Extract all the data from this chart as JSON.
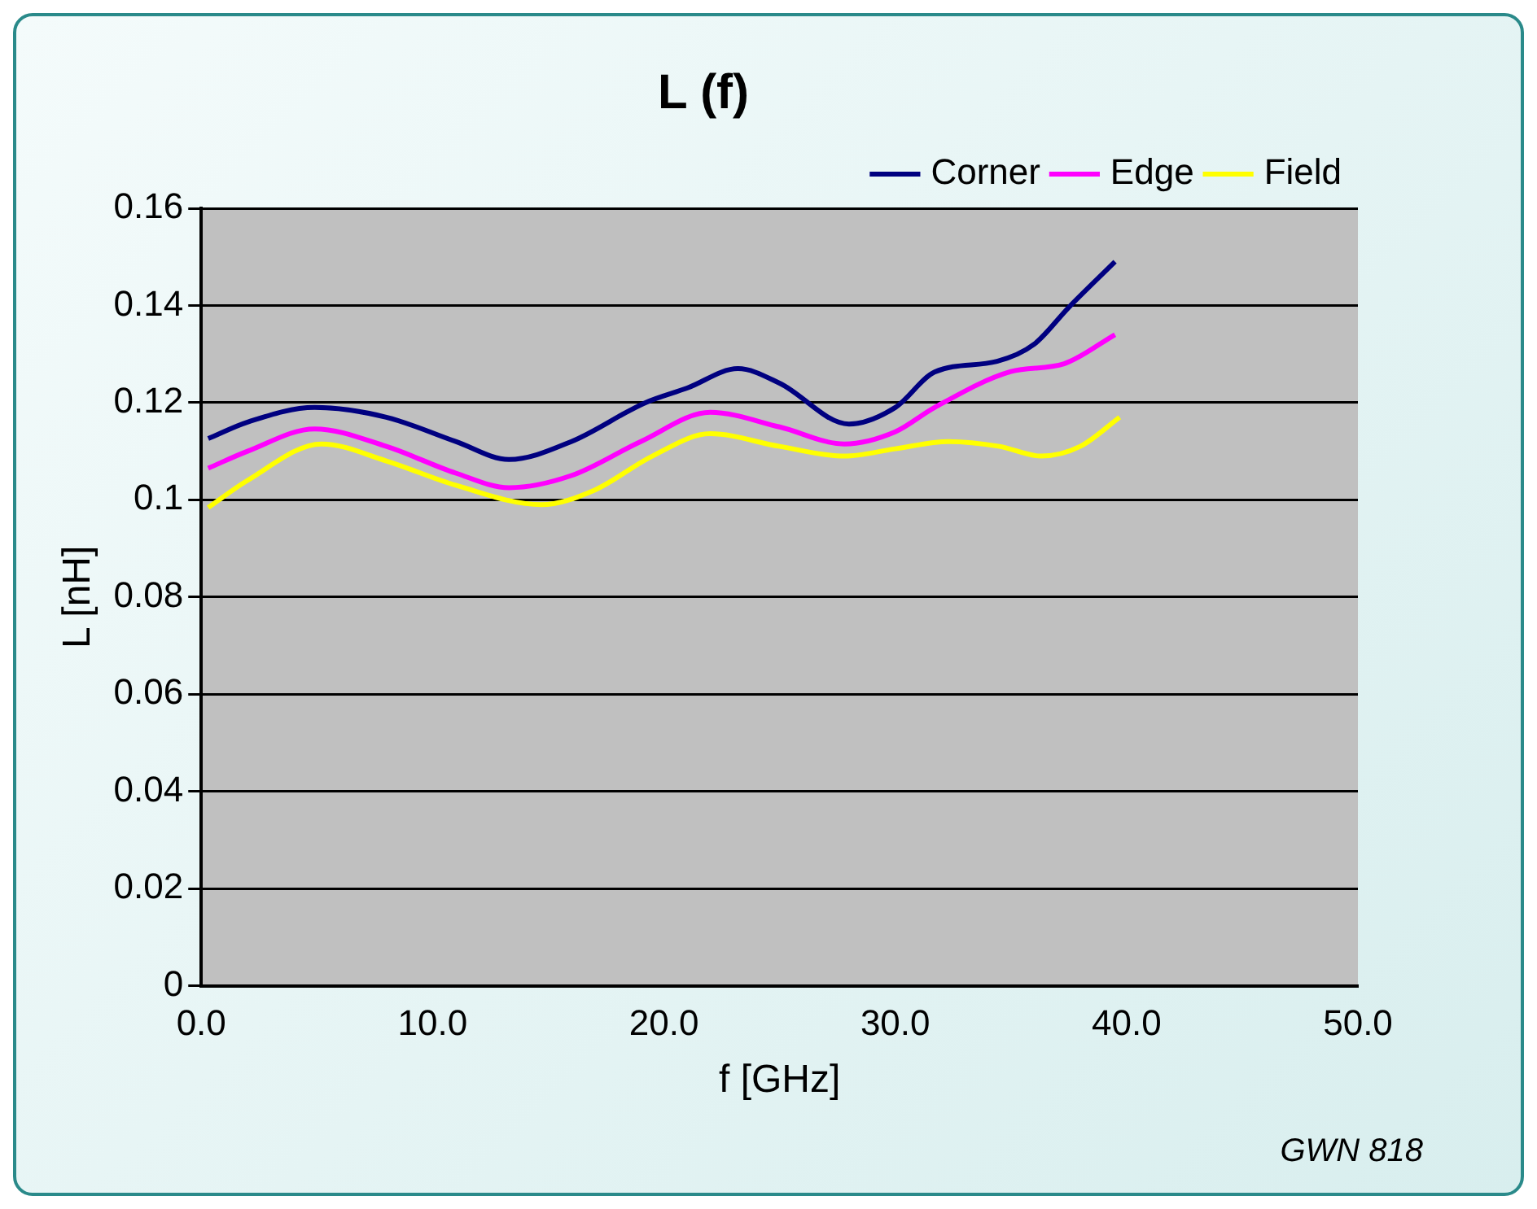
{
  "chart_data": {
    "type": "line",
    "title": "L (f)",
    "xlabel": "f [GHz]",
    "ylabel": "L [nH]",
    "annotations": [
      "GWN 818"
    ],
    "xlim": [
      0,
      50
    ],
    "xticks": [
      {
        "value": 0,
        "label": "0.0"
      },
      {
        "value": 10,
        "label": "10.0"
      },
      {
        "value": 20,
        "label": "20.0"
      },
      {
        "value": 30,
        "label": "30.0"
      },
      {
        "value": 40,
        "label": "40.0"
      },
      {
        "value": 50,
        "label": "50.0"
      }
    ],
    "ylim": [
      0,
      0.16
    ],
    "yticks": [
      0,
      0.02,
      0.04,
      0.06,
      0.08,
      0.1,
      0.12,
      0.14,
      0.16
    ],
    "grid": "y",
    "legend": "top right",
    "marker": "none",
    "line_style": "solid",
    "series": [
      {
        "name": "Corner",
        "color": "#000080",
        "x": [
          0.3,
          2,
          4.9,
          8,
          11,
          13.3,
          16,
          19.2,
          21,
          23.2,
          25,
          28,
          30,
          31.7,
          34.4,
          36,
          37.5,
          39.5
        ],
        "values": [
          0.1126,
          0.116,
          0.119,
          0.117,
          0.112,
          0.1083,
          0.112,
          0.12,
          0.123,
          0.127,
          0.124,
          0.1156,
          0.119,
          0.1263,
          0.1285,
          0.132,
          0.1396,
          0.149
        ]
      },
      {
        "name": "Edge",
        "color": "#ff00ff",
        "x": [
          0.3,
          2,
          4.9,
          8,
          11,
          13.3,
          16,
          19,
          22,
          25,
          27.8,
          30,
          31.7,
          35,
          37.3,
          39.5
        ],
        "values": [
          0.1065,
          0.11,
          0.1146,
          0.111,
          0.1055,
          0.1025,
          0.105,
          0.112,
          0.118,
          0.115,
          0.1115,
          0.114,
          0.119,
          0.1264,
          0.128,
          0.134
        ]
      },
      {
        "name": "Field",
        "color": "#ffff00",
        "x": [
          0.3,
          2,
          5.2,
          8,
          11,
          14.7,
          17,
          19.5,
          22,
          25,
          27.8,
          30,
          32.3,
          34.5,
          36.3,
          38,
          39.7
        ],
        "values": [
          0.0984,
          0.104,
          0.1115,
          0.108,
          0.103,
          0.099,
          0.102,
          0.109,
          0.1136,
          0.111,
          0.109,
          0.1105,
          0.112,
          0.111,
          0.109,
          0.111,
          0.117
        ]
      }
    ]
  }
}
